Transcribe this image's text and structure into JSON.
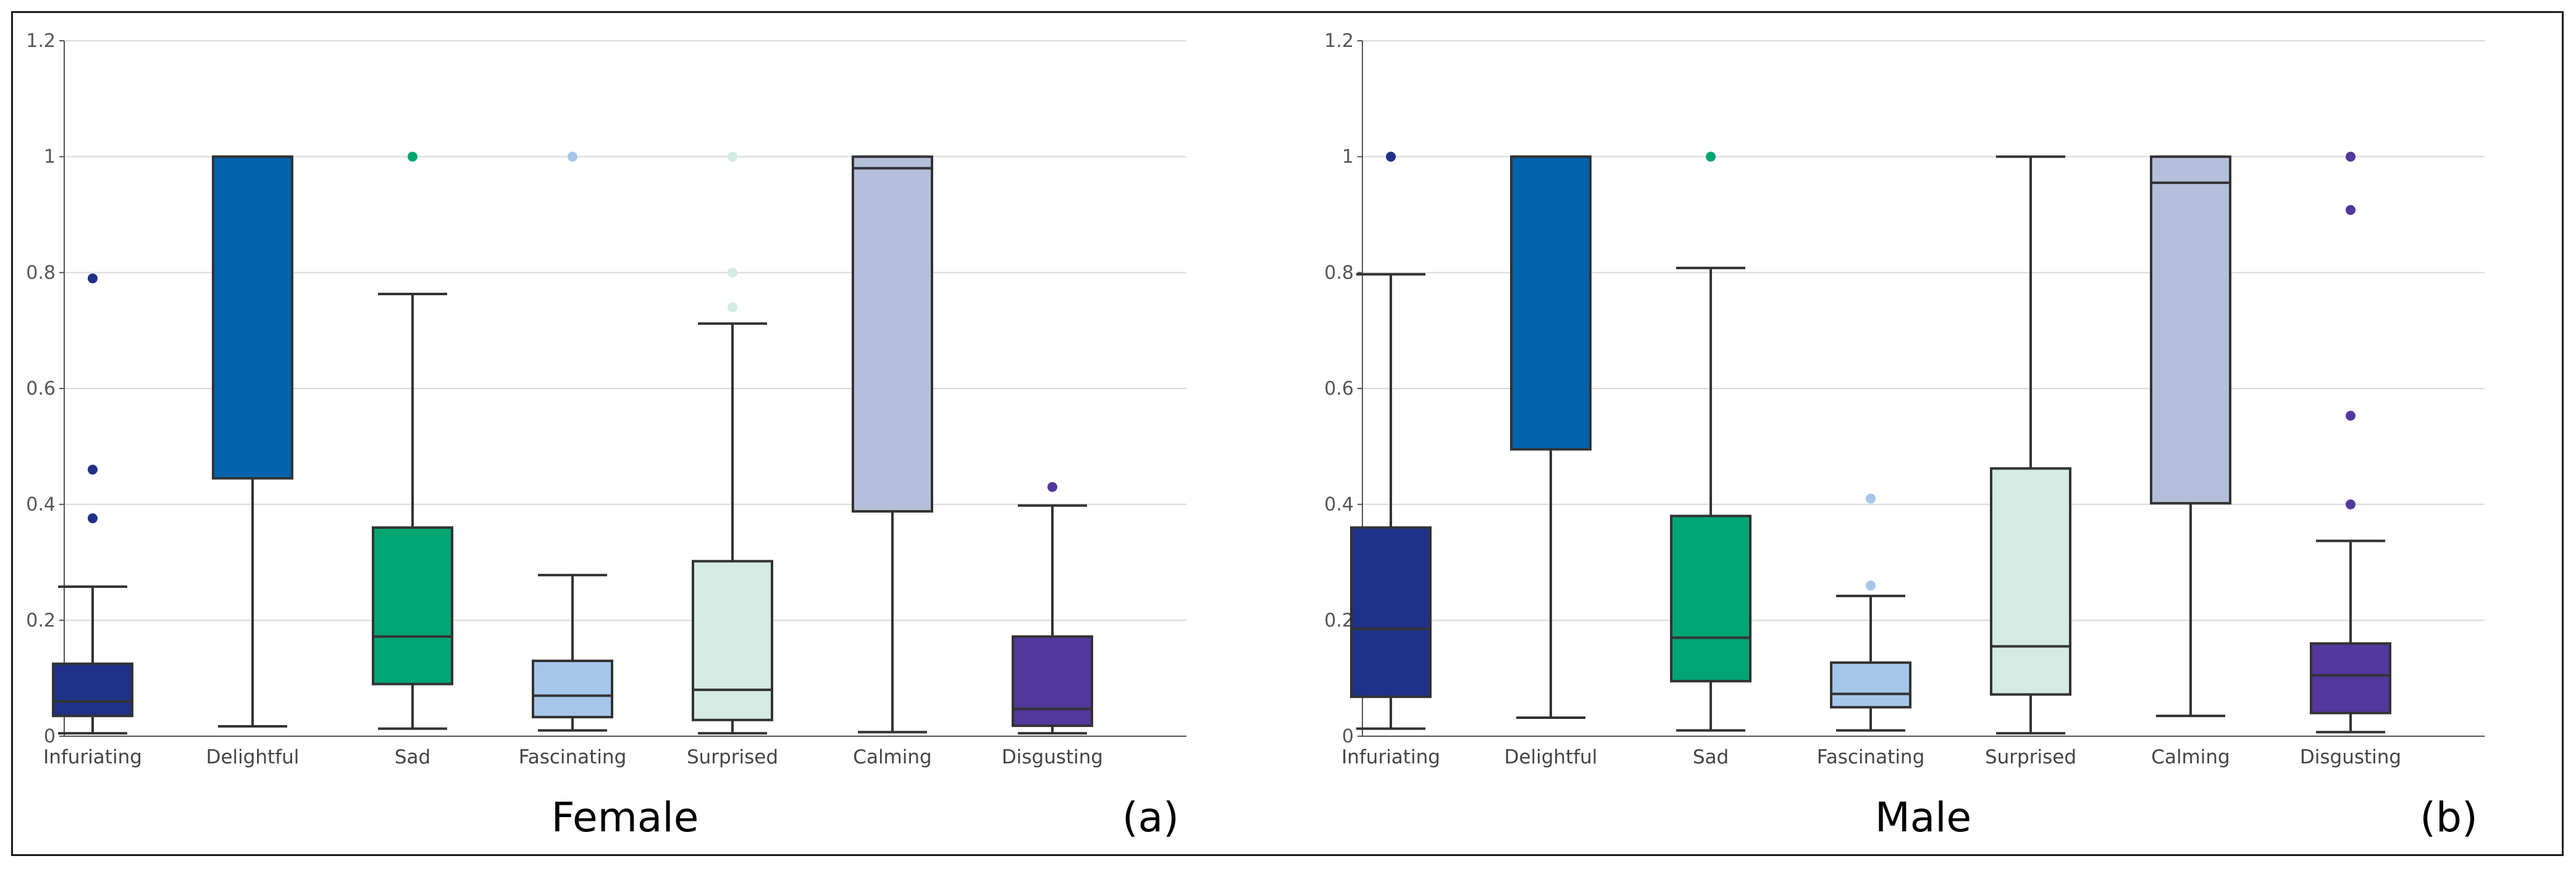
{
  "chart_data": [
    {
      "type": "box",
      "title": "Female",
      "panel_label": "(a)",
      "ylim": [
        0,
        1.2
      ],
      "yticks": [
        "0",
        "0.2",
        "0.4",
        "0.6",
        "0.8",
        "1",
        "1.2"
      ],
      "ytick_values": [
        0,
        0.2,
        0.4,
        0.6,
        0.8,
        1.0,
        1.2
      ],
      "categories": [
        "Infuriating",
        "Delightful",
        "Sad",
        "Fascinating",
        "Surprised",
        "Calming",
        "Disgusting"
      ],
      "colors": [
        "#1f3188",
        "#0063ac",
        "#00a574",
        "#a6c6e9",
        "#d3ebe2",
        "#b4bfdb",
        "#52379c"
      ],
      "boxes": [
        {
          "whisker_low": 0.005,
          "q1": 0.035,
          "median": 0.06,
          "q3": 0.125,
          "whisker_high": 0.258,
          "outliers": [
            0.376,
            0.46,
            0.79
          ]
        },
        {
          "whisker_low": 0.017,
          "q1": 0.445,
          "median": 1.0,
          "q3": 1.0,
          "whisker_high": 1.0,
          "outliers": []
        },
        {
          "whisker_low": 0.013,
          "q1": 0.09,
          "median": 0.172,
          "q3": 0.36,
          "whisker_high": 0.763,
          "outliers": [
            1.0
          ]
        },
        {
          "whisker_low": 0.01,
          "q1": 0.033,
          "median": 0.07,
          "q3": 0.13,
          "whisker_high": 0.278,
          "outliers": [
            1.0
          ]
        },
        {
          "whisker_low": 0.005,
          "q1": 0.028,
          "median": 0.08,
          "q3": 0.302,
          "whisker_high": 0.712,
          "outliers": [
            0.74,
            0.8,
            1.0
          ]
        },
        {
          "whisker_low": 0.007,
          "q1": 0.388,
          "median": 0.98,
          "q3": 1.0,
          "whisker_high": 1.0,
          "outliers": []
        },
        {
          "whisker_low": 0.005,
          "q1": 0.018,
          "median": 0.047,
          "q3": 0.172,
          "whisker_high": 0.398,
          "outliers": [
            0.43
          ]
        }
      ]
    },
    {
      "type": "box",
      "title": "Male",
      "panel_label": "(b)",
      "ylim": [
        0,
        1.2
      ],
      "yticks": [
        "0",
        "0.2",
        "0.4",
        "0.6",
        "0.8",
        "1",
        "1.2"
      ],
      "ytick_values": [
        0,
        0.2,
        0.4,
        0.6,
        0.8,
        1.0,
        1.2
      ],
      "categories": [
        "Infuriating",
        "Delightful",
        "Sad",
        "Fascinating",
        "Surprised",
        "Calming",
        "Disgusting"
      ],
      "colors": [
        "#1f3188",
        "#0063ac",
        "#00a574",
        "#a6c6e9",
        "#d3ebe2",
        "#b4bfdb",
        "#52379c"
      ],
      "boxes": [
        {
          "whisker_low": 0.013,
          "q1": 0.068,
          "median": 0.185,
          "q3": 0.36,
          "whisker_high": 0.797,
          "outliers": [
            1.0
          ]
        },
        {
          "whisker_low": 0.032,
          "q1": 0.495,
          "median": 1.0,
          "q3": 1.0,
          "whisker_high": 1.0,
          "outliers": []
        },
        {
          "whisker_low": 0.01,
          "q1": 0.095,
          "median": 0.17,
          "q3": 0.38,
          "whisker_high": 0.808,
          "outliers": [
            1.0
          ]
        },
        {
          "whisker_low": 0.01,
          "q1": 0.05,
          "median": 0.073,
          "q3": 0.127,
          "whisker_high": 0.242,
          "outliers": [
            0.26,
            0.41
          ]
        },
        {
          "whisker_low": 0.005,
          "q1": 0.072,
          "median": 0.155,
          "q3": 0.462,
          "whisker_high": 1.0,
          "outliers": []
        },
        {
          "whisker_low": 0.035,
          "q1": 0.402,
          "median": 0.955,
          "q3": 1.0,
          "whisker_high": 1.0,
          "outliers": []
        },
        {
          "whisker_low": 0.007,
          "q1": 0.04,
          "median": 0.105,
          "q3": 0.16,
          "whisker_high": 0.337,
          "outliers": [
            0.4,
            0.553,
            0.908,
            1.0
          ]
        }
      ]
    }
  ]
}
